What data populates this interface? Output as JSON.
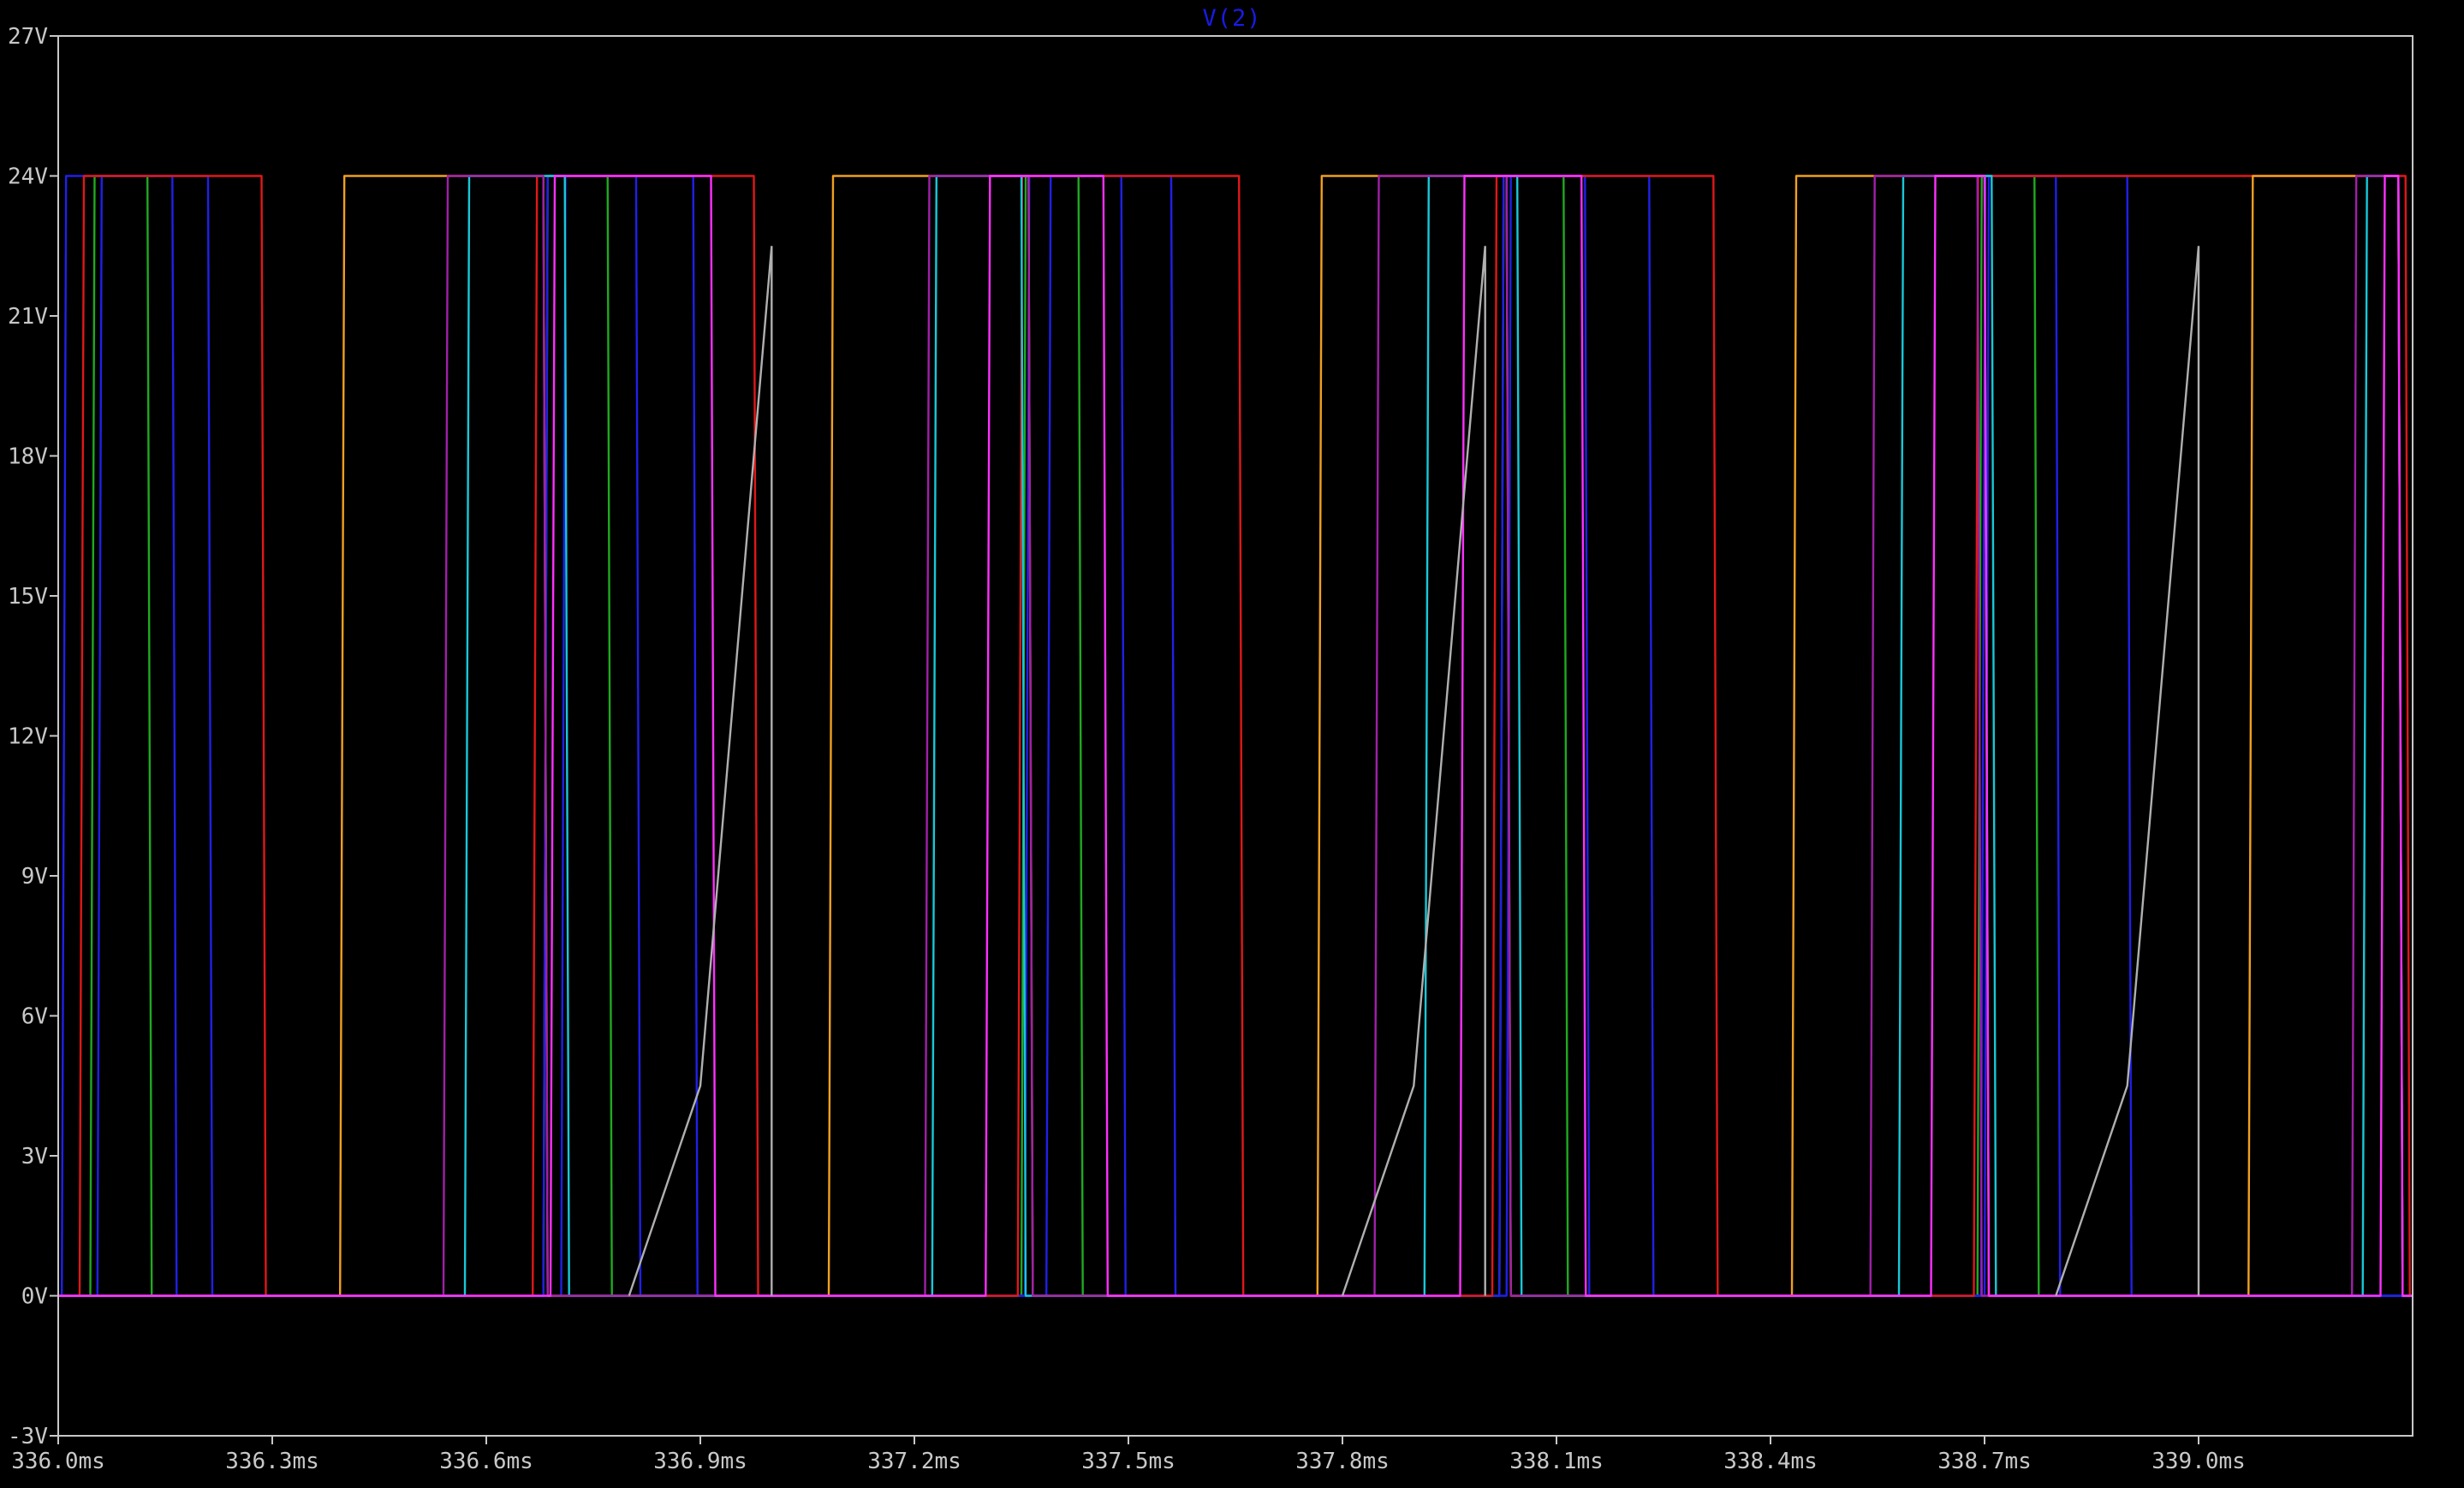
{
  "window": {
    "trace_label": "V(2)"
  },
  "colors": {
    "background": "#000000",
    "axis": "#c8c8c8",
    "tick_text": "#c8c8c8",
    "trace_label": "#1a1ae6",
    "traces": {
      "green": "#1faa1f",
      "blue": "#2020e8",
      "red": "#e01818",
      "orange": "#f0a020",
      "cyan": "#18c8d8",
      "purple": "#a020a8",
      "magenta": "#ff30ff",
      "gray": "#b0b0b0"
    }
  },
  "chart_data": {
    "type": "line",
    "title": "V(2)",
    "xlabel": "",
    "ylabel": "",
    "xlim": [
      336.0,
      339.3
    ],
    "ylim": [
      -3,
      27
    ],
    "x_unit": "ms",
    "y_unit": "V",
    "x_ticks": [
      336.0,
      336.3,
      336.6,
      336.9,
      337.2,
      337.5,
      337.8,
      338.1,
      338.4,
      338.7,
      339.0
    ],
    "x_tick_labels": [
      "336.0ms",
      "336.3ms",
      "336.6ms",
      "336.9ms",
      "337.2ms",
      "337.5ms",
      "337.8ms",
      "338.1ms",
      "338.4ms",
      "338.7ms",
      "339.0ms"
    ],
    "y_ticks": [
      -3,
      0,
      3,
      6,
      9,
      12,
      15,
      18,
      21,
      24,
      27
    ],
    "y_tick_labels": [
      "-3V",
      "0V",
      "3V",
      "6V",
      "9V",
      "12V",
      "15V",
      "18V",
      "21V",
      "24V",
      "27V"
    ],
    "grid": false,
    "legend": "none",
    "levels": {
      "high": 24,
      "low": 0
    },
    "series": [
      {
        "color": "green",
        "segments": [
          [
            336.045,
            336.125
          ],
          [
            336.68,
            336.77
          ],
          [
            337.35,
            337.43
          ],
          [
            338.02,
            338.11
          ],
          [
            338.69,
            338.77
          ]
        ]
      },
      {
        "color": "blue",
        "segments": [
          [
            336.055,
            336.16
          ],
          [
            336.705,
            336.81
          ],
          [
            337.385,
            337.49
          ],
          [
            338.03,
            338.14
          ],
          [
            338.7,
            338.8
          ]
        ]
      },
      {
        "color": "blue",
        "segments": [
          [
            336.005,
            336.21
          ],
          [
            336.68,
            336.89
          ],
          [
            337.355,
            337.56
          ],
          [
            338.02,
            338.23
          ],
          [
            338.695,
            338.9
          ]
        ]
      },
      {
        "color": "red",
        "segments": [
          [
            336.03,
            336.285
          ],
          [
            336.665,
            336.975
          ],
          [
            337.345,
            337.655
          ],
          [
            338.01,
            338.32
          ],
          [
            338.685,
            339.29
          ]
        ]
      },
      {
        "color": "orange",
        "segments": [
          [
            336.395,
            336.68
          ],
          [
            337.08,
            337.36
          ],
          [
            337.765,
            338.03
          ],
          [
            338.43,
            338.7
          ],
          [
            339.07,
            339.28
          ]
        ]
      },
      {
        "color": "cyan",
        "segments": [
          [
            336.57,
            336.71
          ],
          [
            337.225,
            337.35
          ],
          [
            337.915,
            338.045
          ],
          [
            338.58,
            338.71
          ],
          [
            339.23,
            339.28
          ]
        ]
      },
      {
        "color": "purple",
        "segments": [
          [
            336.54,
            336.68
          ],
          [
            337.215,
            337.36
          ],
          [
            337.845,
            338.03
          ],
          [
            338.54,
            338.69
          ],
          [
            339.215,
            339.28
          ]
        ]
      },
      {
        "color": "magenta",
        "segments": [
          [
            336.69,
            336.915
          ],
          [
            337.3,
            337.465
          ],
          [
            337.965,
            338.135
          ],
          [
            338.625,
            338.7
          ],
          [
            339.255,
            339.28
          ]
        ]
      },
      {
        "color": "gray",
        "ramps": [
          {
            "x": [
              336.8,
              336.9,
              337.0
            ],
            "y": [
              0,
              4.5,
              22.5
            ]
          },
          {
            "x": [
              337.8,
              337.9,
              338.0
            ],
            "y": [
              0,
              4.5,
              22.5
            ]
          },
          {
            "x": [
              338.8,
              338.9,
              339.0
            ],
            "y": [
              0,
              4.5,
              22.5
            ]
          }
        ]
      }
    ]
  }
}
